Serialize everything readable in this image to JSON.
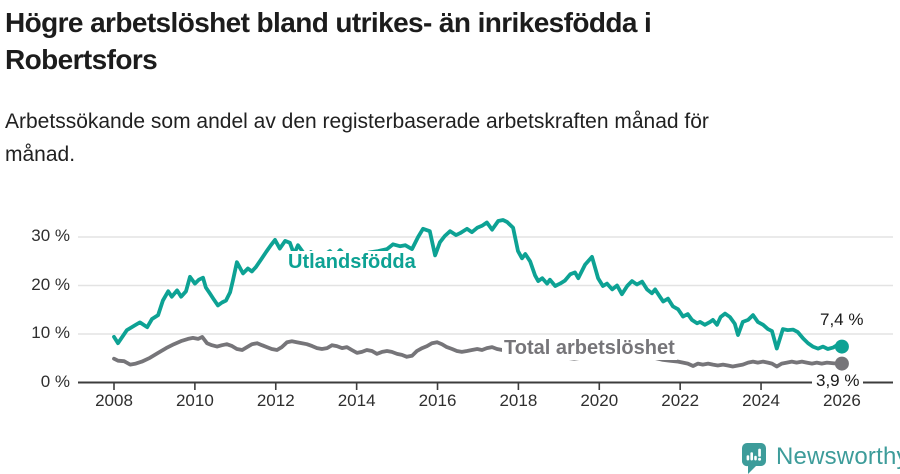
{
  "chart_data": {
    "type": "line",
    "title": "Högre arbetslöshet bland utrikes- än inrikesfödda i Robertsfors",
    "subtitle": "Arbetssökande som andel av den registerbaserade arbetskraften månad för månad.",
    "xlabel": "",
    "ylabel": "",
    "ylim": [
      0,
      35
    ],
    "xlim": [
      2007.1,
      2027.3
    ],
    "grid": "horizontal",
    "legend_position": "inline-labels",
    "y_ticks": [
      {
        "value": 0,
        "label": "0 %"
      },
      {
        "value": 10,
        "label": "10 %"
      },
      {
        "value": 20,
        "label": "20 %"
      },
      {
        "value": 30,
        "label": "30 %"
      }
    ],
    "x_ticks": [
      {
        "year": 2008,
        "label": "2008"
      },
      {
        "year": 2010,
        "label": "2010"
      },
      {
        "year": 2012,
        "label": "2012"
      },
      {
        "year": 2014,
        "label": "2014"
      },
      {
        "year": 2016,
        "label": "2016"
      },
      {
        "year": 2018,
        "label": "2018"
      },
      {
        "year": 2020,
        "label": "2020"
      },
      {
        "year": 2022,
        "label": "2022"
      },
      {
        "year": 2024,
        "label": "2024"
      },
      {
        "year": 2026,
        "label": "2026"
      }
    ],
    "series": [
      {
        "name": "Utlandsfödda",
        "color": "#0da294",
        "end_label": "7,4 %",
        "end_value": 7.4,
        "points": [
          [
            2008.0,
            9.4
          ],
          [
            2008.1,
            8.1
          ],
          [
            2008.32,
            10.8
          ],
          [
            2008.52,
            11.8
          ],
          [
            2008.64,
            12.4
          ],
          [
            2008.82,
            11.4
          ],
          [
            2008.94,
            13.1
          ],
          [
            2009.09,
            13.9
          ],
          [
            2009.21,
            16.9
          ],
          [
            2009.34,
            18.8
          ],
          [
            2009.43,
            17.7
          ],
          [
            2009.56,
            19.0
          ],
          [
            2009.66,
            17.7
          ],
          [
            2009.78,
            18.8
          ],
          [
            2009.88,
            21.8
          ],
          [
            2010.0,
            20.4
          ],
          [
            2010.1,
            21.2
          ],
          [
            2010.2,
            21.6
          ],
          [
            2010.27,
            19.6
          ],
          [
            2010.37,
            18.4
          ],
          [
            2010.47,
            17.1
          ],
          [
            2010.57,
            15.9
          ],
          [
            2010.67,
            16.5
          ],
          [
            2010.77,
            16.9
          ],
          [
            2010.87,
            18.6
          ],
          [
            2010.94,
            21.0
          ],
          [
            2011.04,
            24.8
          ],
          [
            2011.19,
            22.5
          ],
          [
            2011.31,
            23.5
          ],
          [
            2011.41,
            22.9
          ],
          [
            2011.51,
            23.8
          ],
          [
            2011.64,
            25.4
          ],
          [
            2011.76,
            26.9
          ],
          [
            2011.88,
            28.3
          ],
          [
            2011.98,
            29.4
          ],
          [
            2012.1,
            27.6
          ],
          [
            2012.23,
            29.2
          ],
          [
            2012.35,
            28.8
          ],
          [
            2012.45,
            26.5
          ],
          [
            2012.55,
            28.3
          ],
          [
            2012.67,
            26.9
          ],
          [
            2012.77,
            26.0
          ],
          [
            2012.87,
            26.9
          ],
          [
            2012.97,
            26.3
          ],
          [
            2013.1,
            25.9
          ],
          [
            2013.34,
            27.1
          ],
          [
            2013.47,
            26.1
          ],
          [
            2013.59,
            27.3
          ],
          [
            2013.75,
            25.9
          ],
          [
            2013.91,
            26.5
          ],
          [
            2014.1,
            26.2
          ],
          [
            2014.3,
            26.8
          ],
          [
            2014.53,
            27.1
          ],
          [
            2014.75,
            27.5
          ],
          [
            2014.9,
            28.5
          ],
          [
            2015.07,
            28.1
          ],
          [
            2015.2,
            28.3
          ],
          [
            2015.37,
            27.5
          ],
          [
            2015.52,
            30.0
          ],
          [
            2015.64,
            31.7
          ],
          [
            2015.81,
            31.2
          ],
          [
            2015.94,
            26.2
          ],
          [
            2016.06,
            28.9
          ],
          [
            2016.18,
            30.2
          ],
          [
            2016.31,
            31.2
          ],
          [
            2016.46,
            30.4
          ],
          [
            2016.56,
            30.8
          ],
          [
            2016.73,
            31.7
          ],
          [
            2016.85,
            31.0
          ],
          [
            2016.98,
            31.9
          ],
          [
            2017.1,
            32.3
          ],
          [
            2017.22,
            33.0
          ],
          [
            2017.35,
            31.5
          ],
          [
            2017.5,
            33.3
          ],
          [
            2017.62,
            33.5
          ],
          [
            2017.72,
            33.1
          ],
          [
            2017.87,
            31.9
          ],
          [
            2017.99,
            27.1
          ],
          [
            2018.09,
            25.6
          ],
          [
            2018.17,
            26.5
          ],
          [
            2018.29,
            25.0
          ],
          [
            2018.41,
            22.1
          ],
          [
            2018.49,
            20.9
          ],
          [
            2018.59,
            21.5
          ],
          [
            2018.71,
            20.4
          ],
          [
            2018.78,
            21.2
          ],
          [
            2018.91,
            19.9
          ],
          [
            2019.03,
            20.4
          ],
          [
            2019.15,
            21.0
          ],
          [
            2019.28,
            22.3
          ],
          [
            2019.4,
            22.7
          ],
          [
            2019.48,
            21.5
          ],
          [
            2019.65,
            24.3
          ],
          [
            2019.82,
            25.9
          ],
          [
            2019.97,
            21.5
          ],
          [
            2020.09,
            19.9
          ],
          [
            2020.19,
            20.4
          ],
          [
            2020.32,
            19.2
          ],
          [
            2020.44,
            20.0
          ],
          [
            2020.56,
            18.2
          ],
          [
            2020.69,
            19.9
          ],
          [
            2020.81,
            20.9
          ],
          [
            2020.93,
            20.2
          ],
          [
            2021.06,
            20.8
          ],
          [
            2021.18,
            19.2
          ],
          [
            2021.3,
            18.4
          ],
          [
            2021.38,
            19.2
          ],
          [
            2021.5,
            17.7
          ],
          [
            2021.58,
            16.7
          ],
          [
            2021.7,
            17.3
          ],
          [
            2021.82,
            15.7
          ],
          [
            2021.95,
            15.1
          ],
          [
            2022.07,
            13.6
          ],
          [
            2022.19,
            14.1
          ],
          [
            2022.29,
            12.9
          ],
          [
            2022.42,
            12.2
          ],
          [
            2022.49,
            12.5
          ],
          [
            2022.61,
            11.9
          ],
          [
            2022.74,
            12.5
          ],
          [
            2022.81,
            12.9
          ],
          [
            2022.91,
            11.9
          ],
          [
            2023.0,
            13.5
          ],
          [
            2023.11,
            14.2
          ],
          [
            2023.23,
            13.5
          ],
          [
            2023.35,
            12.1
          ],
          [
            2023.43,
            9.8
          ],
          [
            2023.55,
            12.5
          ],
          [
            2023.68,
            12.9
          ],
          [
            2023.8,
            13.9
          ],
          [
            2023.92,
            12.5
          ],
          [
            2024.05,
            11.9
          ],
          [
            2024.17,
            11.0
          ],
          [
            2024.27,
            10.6
          ],
          [
            2024.39,
            7.0
          ],
          [
            2024.54,
            11.0
          ],
          [
            2024.66,
            10.8
          ],
          [
            2024.79,
            10.9
          ],
          [
            2024.91,
            10.4
          ],
          [
            2025.04,
            9.1
          ],
          [
            2025.16,
            8.1
          ],
          [
            2025.28,
            7.4
          ],
          [
            2025.41,
            7.0
          ],
          [
            2025.53,
            7.4
          ],
          [
            2025.65,
            6.9
          ],
          [
            2025.78,
            7.2
          ],
          [
            2025.88,
            7.7
          ],
          [
            2026.0,
            7.4
          ]
        ]
      },
      {
        "name": "Total arbetslöshet",
        "color": "#767579",
        "end_label": "3,9 %",
        "end_value": 3.9,
        "points": [
          [
            2008.0,
            4.9
          ],
          [
            2008.1,
            4.5
          ],
          [
            2008.25,
            4.4
          ],
          [
            2008.4,
            3.7
          ],
          [
            2008.54,
            3.9
          ],
          [
            2008.69,
            4.3
          ],
          [
            2008.89,
            5.1
          ],
          [
            2009.09,
            6.1
          ],
          [
            2009.29,
            7.1
          ],
          [
            2009.48,
            7.9
          ],
          [
            2009.68,
            8.6
          ],
          [
            2009.83,
            9.0
          ],
          [
            2009.95,
            9.2
          ],
          [
            2010.08,
            9.0
          ],
          [
            2010.18,
            9.4
          ],
          [
            2010.3,
            8.1
          ],
          [
            2010.42,
            7.7
          ],
          [
            2010.55,
            7.4
          ],
          [
            2010.67,
            7.7
          ],
          [
            2010.79,
            7.9
          ],
          [
            2010.92,
            7.5
          ],
          [
            2011.04,
            6.9
          ],
          [
            2011.17,
            6.7
          ],
          [
            2011.29,
            7.3
          ],
          [
            2011.41,
            7.9
          ],
          [
            2011.54,
            8.1
          ],
          [
            2011.66,
            7.7
          ],
          [
            2011.78,
            7.3
          ],
          [
            2011.9,
            6.9
          ],
          [
            2012.03,
            6.7
          ],
          [
            2012.15,
            7.3
          ],
          [
            2012.28,
            8.3
          ],
          [
            2012.4,
            8.5
          ],
          [
            2012.52,
            8.3
          ],
          [
            2012.65,
            8.1
          ],
          [
            2012.77,
            7.9
          ],
          [
            2012.9,
            7.5
          ],
          [
            2013.02,
            7.1
          ],
          [
            2013.14,
            6.9
          ],
          [
            2013.27,
            7.1
          ],
          [
            2013.39,
            7.7
          ],
          [
            2013.51,
            7.5
          ],
          [
            2013.64,
            7.1
          ],
          [
            2013.76,
            7.3
          ],
          [
            2013.88,
            6.7
          ],
          [
            2014.01,
            6.1
          ],
          [
            2014.13,
            6.3
          ],
          [
            2014.25,
            6.7
          ],
          [
            2014.38,
            6.5
          ],
          [
            2014.5,
            5.9
          ],
          [
            2014.63,
            6.3
          ],
          [
            2014.75,
            6.5
          ],
          [
            2014.87,
            6.3
          ],
          [
            2015.0,
            5.9
          ],
          [
            2015.12,
            5.7
          ],
          [
            2015.24,
            5.3
          ],
          [
            2015.37,
            5.5
          ],
          [
            2015.49,
            6.5
          ],
          [
            2015.62,
            7.1
          ],
          [
            2015.74,
            7.5
          ],
          [
            2015.86,
            8.1
          ],
          [
            2015.99,
            8.3
          ],
          [
            2016.11,
            7.9
          ],
          [
            2016.23,
            7.3
          ],
          [
            2016.36,
            6.9
          ],
          [
            2016.48,
            6.5
          ],
          [
            2016.6,
            6.3
          ],
          [
            2016.73,
            6.5
          ],
          [
            2016.85,
            6.7
          ],
          [
            2016.98,
            6.9
          ],
          [
            2017.1,
            6.7
          ],
          [
            2017.22,
            7.1
          ],
          [
            2017.35,
            7.3
          ],
          [
            2017.47,
            6.9
          ],
          [
            2017.6,
            6.7
          ],
          [
            2017.79,
            6.5
          ],
          [
            2017.99,
            6.1
          ],
          [
            2018.19,
            5.7
          ],
          [
            2018.39,
            5.5
          ],
          [
            2018.59,
            5.3
          ],
          [
            2018.78,
            5.1
          ],
          [
            2018.98,
            5.3
          ],
          [
            2019.18,
            5.1
          ],
          [
            2019.38,
            4.9
          ],
          [
            2019.57,
            5.1
          ],
          [
            2019.77,
            5.3
          ],
          [
            2019.97,
            5.5
          ],
          [
            2020.17,
            5.9
          ],
          [
            2020.37,
            6.1
          ],
          [
            2020.56,
            5.9
          ],
          [
            2020.76,
            5.7
          ],
          [
            2020.96,
            5.5
          ],
          [
            2021.16,
            5.3
          ],
          [
            2021.35,
            5.1
          ],
          [
            2021.55,
            4.7
          ],
          [
            2021.75,
            4.5
          ],
          [
            2021.95,
            4.3
          ],
          [
            2022.07,
            4.1
          ],
          [
            2022.19,
            3.9
          ],
          [
            2022.32,
            3.4
          ],
          [
            2022.44,
            3.9
          ],
          [
            2022.56,
            3.7
          ],
          [
            2022.69,
            3.9
          ],
          [
            2022.81,
            3.7
          ],
          [
            2022.93,
            3.5
          ],
          [
            2023.06,
            3.7
          ],
          [
            2023.18,
            3.5
          ],
          [
            2023.3,
            3.3
          ],
          [
            2023.43,
            3.5
          ],
          [
            2023.55,
            3.7
          ],
          [
            2023.68,
            4.1
          ],
          [
            2023.8,
            4.3
          ],
          [
            2023.92,
            4.1
          ],
          [
            2024.05,
            4.3
          ],
          [
            2024.17,
            4.1
          ],
          [
            2024.27,
            3.9
          ],
          [
            2024.39,
            3.3
          ],
          [
            2024.51,
            3.9
          ],
          [
            2024.64,
            4.1
          ],
          [
            2024.76,
            4.3
          ],
          [
            2024.88,
            4.1
          ],
          [
            2025.01,
            4.3
          ],
          [
            2025.13,
            4.1
          ],
          [
            2025.26,
            3.9
          ],
          [
            2025.38,
            4.1
          ],
          [
            2025.5,
            3.9
          ],
          [
            2025.63,
            4.1
          ],
          [
            2025.75,
            4.0
          ],
          [
            2025.88,
            3.9
          ],
          [
            2026.0,
            3.9
          ]
        ]
      }
    ]
  },
  "footer": {
    "brand": "Newsworthy",
    "brand_color": "#3d9c9a"
  }
}
